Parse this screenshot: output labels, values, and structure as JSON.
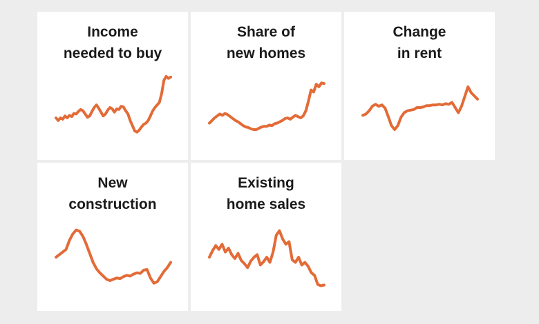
{
  "colors": {
    "background": "#ededed",
    "panel": "#ffffff",
    "line": "#e36b37",
    "title": "#1a1a1a"
  },
  "chart_data": [
    {
      "type": "line",
      "title_lines": [
        "Income",
        "needed to buy"
      ],
      "xlabel": "",
      "ylabel": "",
      "grid": false,
      "values": [
        0.34,
        0.3,
        0.34,
        0.32,
        0.37,
        0.34,
        0.38,
        0.36,
        0.41,
        0.4,
        0.44,
        0.47,
        0.45,
        0.4,
        0.35,
        0.37,
        0.44,
        0.5,
        0.54,
        0.49,
        0.43,
        0.37,
        0.4,
        0.46,
        0.5,
        0.48,
        0.43,
        0.48,
        0.47,
        0.52,
        0.51,
        0.45,
        0.4,
        0.3,
        0.22,
        0.14,
        0.12,
        0.15,
        0.2,
        0.24,
        0.26,
        0.3,
        0.37,
        0.45,
        0.5,
        0.54,
        0.58,
        0.72,
        0.92,
        0.98,
        0.95,
        0.97
      ]
    },
    {
      "type": "line",
      "title_lines": [
        "Share of",
        "new homes"
      ],
      "xlabel": "",
      "ylabel": "",
      "grid": false,
      "values": [
        0.26,
        0.3,
        0.34,
        0.37,
        0.4,
        0.38,
        0.41,
        0.39,
        0.36,
        0.33,
        0.3,
        0.28,
        0.25,
        0.22,
        0.2,
        0.19,
        0.17,
        0.16,
        0.16,
        0.18,
        0.2,
        0.21,
        0.21,
        0.23,
        0.22,
        0.25,
        0.26,
        0.28,
        0.3,
        0.33,
        0.34,
        0.32,
        0.35,
        0.38,
        0.36,
        0.34,
        0.37,
        0.45,
        0.6,
        0.77,
        0.74,
        0.86,
        0.82,
        0.88,
        0.87
      ]
    },
    {
      "type": "line",
      "title_lines": [
        "Change",
        "in rent"
      ],
      "xlabel": "",
      "ylabel": "",
      "grid": false,
      "values": [
        0.38,
        0.4,
        0.45,
        0.52,
        0.55,
        0.52,
        0.54,
        0.49,
        0.36,
        0.22,
        0.16,
        0.22,
        0.35,
        0.42,
        0.45,
        0.46,
        0.47,
        0.5,
        0.5,
        0.51,
        0.53,
        0.53,
        0.54,
        0.54,
        0.55,
        0.54,
        0.56,
        0.55,
        0.58,
        0.5,
        0.42,
        0.52,
        0.67,
        0.82,
        0.73,
        0.68,
        0.63
      ]
    },
    {
      "type": "line",
      "title_lines": [
        "New",
        "construction"
      ],
      "xlabel": "",
      "ylabel": "",
      "grid": false,
      "values": [
        0.52,
        0.56,
        0.6,
        0.64,
        0.78,
        0.88,
        0.94,
        0.92,
        0.84,
        0.72,
        0.58,
        0.44,
        0.34,
        0.28,
        0.23,
        0.18,
        0.16,
        0.18,
        0.2,
        0.19,
        0.22,
        0.24,
        0.23,
        0.26,
        0.28,
        0.27,
        0.32,
        0.33,
        0.2,
        0.12,
        0.14,
        0.22,
        0.3,
        0.36,
        0.44
      ]
    },
    {
      "type": "line",
      "title_lines": [
        "Existing",
        "home sales"
      ],
      "xlabel": "",
      "ylabel": "",
      "grid": false,
      "values": [
        0.52,
        0.62,
        0.7,
        0.64,
        0.72,
        0.6,
        0.66,
        0.56,
        0.5,
        0.58,
        0.47,
        0.42,
        0.36,
        0.46,
        0.52,
        0.56,
        0.4,
        0.45,
        0.52,
        0.44,
        0.6,
        0.86,
        0.93,
        0.8,
        0.72,
        0.76,
        0.48,
        0.44,
        0.52,
        0.4,
        0.44,
        0.38,
        0.28,
        0.24,
        0.1,
        0.08,
        0.09
      ]
    }
  ]
}
